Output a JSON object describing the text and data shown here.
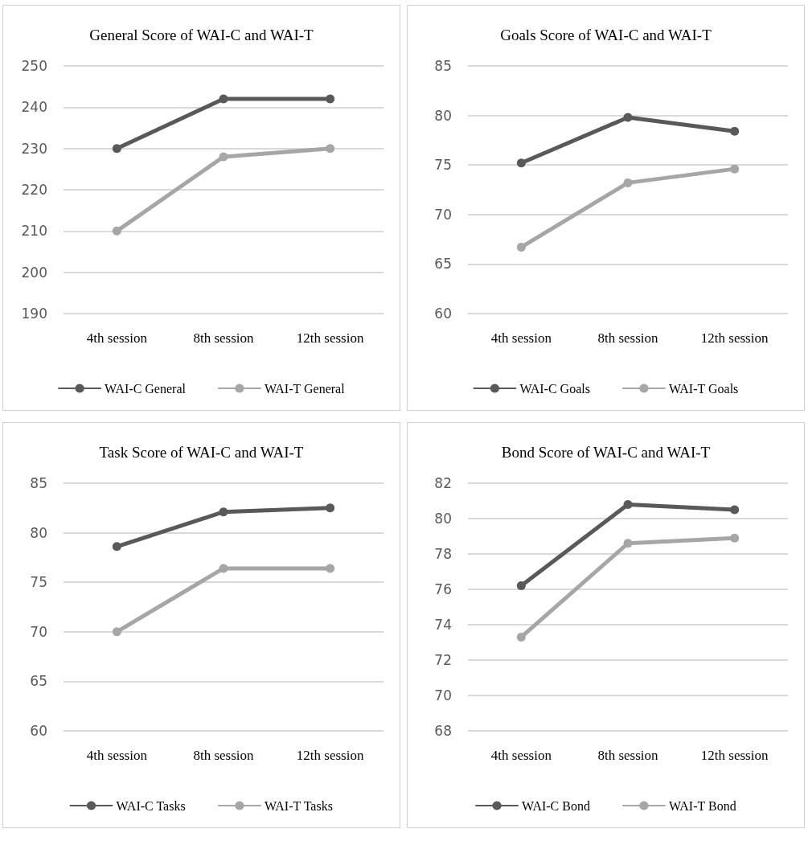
{
  "chart_data": [
    {
      "type": "line",
      "title": "General Score of WAI-C and WAI-T",
      "categories": [
        "4th session",
        "8th session",
        "12th session"
      ],
      "series": [
        {
          "name": "WAI-C General",
          "color": "#595959",
          "values": [
            230,
            242,
            242
          ]
        },
        {
          "name": "WAI-T General",
          "color": "#a6a6a6",
          "values": [
            210,
            228,
            230
          ]
        }
      ],
      "ylim": [
        190,
        250
      ],
      "yticks": [
        190,
        200,
        210,
        220,
        230,
        240,
        250
      ],
      "grid": "y",
      "legend": "bottom",
      "marker": "circle",
      "line_style": "solid"
    },
    {
      "type": "line",
      "title": "Goals Score of WAI-C and WAI-T",
      "categories": [
        "4th session",
        "8th session",
        "12th session"
      ],
      "series": [
        {
          "name": "WAI-C Goals",
          "color": "#595959",
          "values": [
            75.2,
            79.8,
            78.4
          ]
        },
        {
          "name": "WAI-T Goals",
          "color": "#a6a6a6",
          "values": [
            66.7,
            73.2,
            74.6
          ]
        }
      ],
      "ylim": [
        60,
        85
      ],
      "yticks": [
        60,
        65,
        70,
        75,
        80,
        85
      ],
      "grid": "y",
      "legend": "bottom",
      "marker": "circle",
      "line_style": "solid"
    },
    {
      "type": "line",
      "title": "Task Score of WAI-C and WAI-T",
      "categories": [
        "4th session",
        "8th session",
        "12th session"
      ],
      "series": [
        {
          "name": "WAI-C Tasks",
          "color": "#595959",
          "values": [
            78.6,
            82.1,
            82.5
          ]
        },
        {
          "name": "WAI-T Tasks",
          "color": "#a6a6a6",
          "values": [
            70.0,
            76.4,
            76.4
          ]
        }
      ],
      "ylim": [
        60,
        85
      ],
      "yticks": [
        60,
        65,
        70,
        75,
        80,
        85
      ],
      "grid": "y",
      "legend": "bottom",
      "marker": "circle",
      "line_style": "solid"
    },
    {
      "type": "line",
      "title": "Bond Score of WAI-C and WAI-T",
      "categories": [
        "4th session",
        "8th session",
        "12th session"
      ],
      "series": [
        {
          "name": "WAI-C Bond",
          "color": "#595959",
          "values": [
            76.2,
            80.8,
            80.5
          ]
        },
        {
          "name": "WAI-T Bond",
          "color": "#a6a6a6",
          "values": [
            73.3,
            78.6,
            78.9
          ]
        }
      ],
      "ylim": [
        68,
        82
      ],
      "yticks": [
        68,
        70,
        72,
        74,
        76,
        78,
        80,
        82
      ],
      "grid": "y",
      "legend": "bottom",
      "marker": "circle",
      "line_style": "solid"
    }
  ]
}
